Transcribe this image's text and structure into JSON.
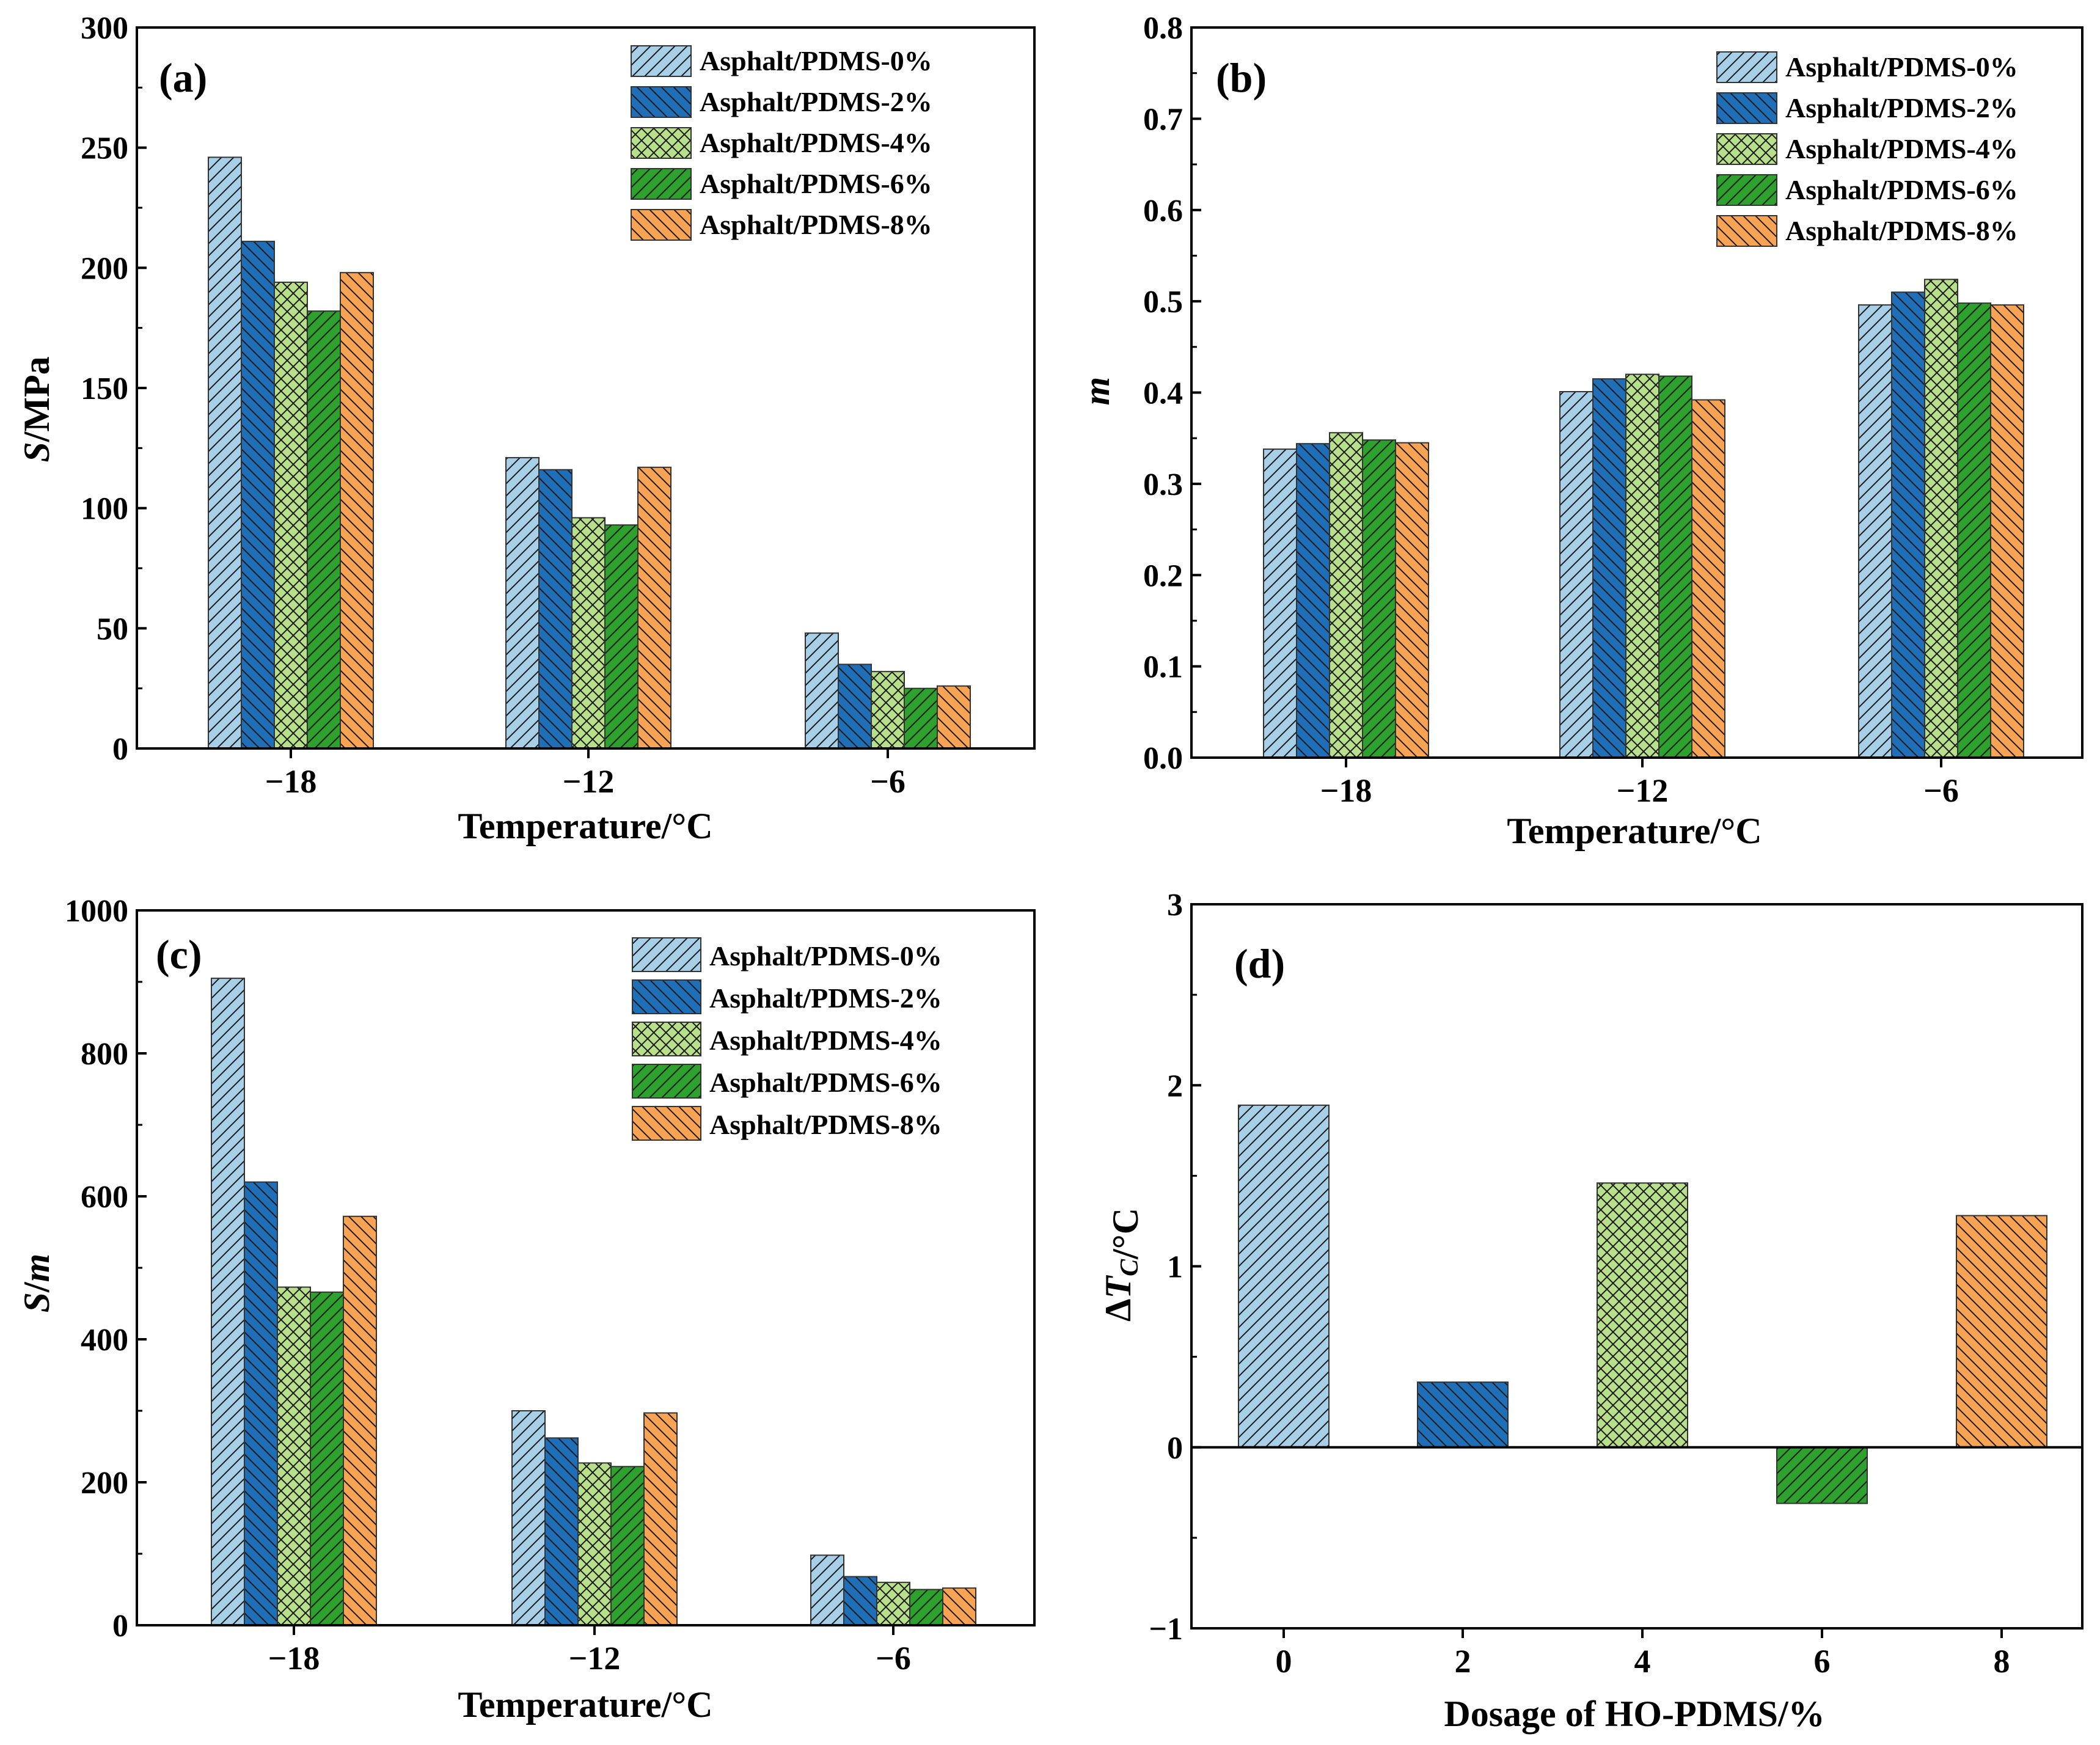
{
  "chart_data": [
    {
      "type": "bar",
      "panel_label": "(a)",
      "title": "",
      "xlabel": "Temperature/°C",
      "ylabel_parts": [
        {
          "text": "S",
          "italic": true
        },
        {
          "text": "/MPa",
          "italic": false
        }
      ],
      "categories": [
        "−18",
        "−12",
        "−6"
      ],
      "yticks": [
        "0",
        "50",
        "100",
        "150",
        "200",
        "250",
        "300"
      ],
      "ylim": [
        0,
        300
      ],
      "legend_position": "top-right",
      "grid": false,
      "series": [
        {
          "name": "Asphalt/PDMS-0%",
          "values": [
            246,
            121,
            48
          ]
        },
        {
          "name": "Asphalt/PDMS-2%",
          "values": [
            211,
            116,
            35
          ]
        },
        {
          "name": "Asphalt/PDMS-4%",
          "values": [
            194,
            96,
            32
          ]
        },
        {
          "name": "Asphalt/PDMS-6%",
          "values": [
            182,
            93,
            25
          ]
        },
        {
          "name": "Asphalt/PDMS-8%",
          "values": [
            198,
            117,
            26
          ]
        }
      ]
    },
    {
      "type": "bar",
      "panel_label": "(b)",
      "title": "",
      "xlabel": "Temperature/°C",
      "ylabel_parts": [
        {
          "text": "m",
          "italic": true
        }
      ],
      "categories": [
        "−18",
        "−12",
        "−6"
      ],
      "yticks": [
        "0.0",
        "0.1",
        "0.2",
        "0.3",
        "0.4",
        "0.5",
        "0.6",
        "0.7",
        "0.8"
      ],
      "ylim": [
        0,
        0.8
      ],
      "legend_position": "top-right",
      "grid": false,
      "series": [
        {
          "name": "Asphalt/PDMS-0%",
          "values": [
            0.338,
            0.401,
            0.496
          ]
        },
        {
          "name": "Asphalt/PDMS-2%",
          "values": [
            0.344,
            0.415,
            0.51
          ]
        },
        {
          "name": "Asphalt/PDMS-4%",
          "values": [
            0.356,
            0.42,
            0.524
          ]
        },
        {
          "name": "Asphalt/PDMS-6%",
          "values": [
            0.348,
            0.418,
            0.498
          ]
        },
        {
          "name": "Asphalt/PDMS-8%",
          "values": [
            0.345,
            0.392,
            0.496
          ]
        }
      ]
    },
    {
      "type": "bar",
      "panel_label": "(c)",
      "title": "",
      "xlabel": "Temperature/°C",
      "ylabel_parts": [
        {
          "text": "S",
          "italic": true
        },
        {
          "text": "/",
          "italic": false
        },
        {
          "text": "m",
          "italic": true
        }
      ],
      "categories": [
        "−18",
        "−12",
        "−6"
      ],
      "yticks": [
        "0",
        "200",
        "400",
        "600",
        "800",
        "1000"
      ],
      "ylim": [
        0,
        1000
      ],
      "legend_position": "top-right",
      "grid": false,
      "series": [
        {
          "name": "Asphalt/PDMS-0%",
          "values": [
            905,
            300,
            98
          ]
        },
        {
          "name": "Asphalt/PDMS-2%",
          "values": [
            620,
            262,
            68
          ]
        },
        {
          "name": "Asphalt/PDMS-4%",
          "values": [
            473,
            227,
            60
          ]
        },
        {
          "name": "Asphalt/PDMS-6%",
          "values": [
            466,
            222,
            50
          ]
        },
        {
          "name": "Asphalt/PDMS-8%",
          "values": [
            572,
            297,
            52
          ]
        }
      ]
    },
    {
      "type": "bar",
      "panel_label": "(d)",
      "title": "",
      "xlabel": "Dosage of HO-PDMS/%",
      "ylabel_parts": [
        {
          "text": "Δ",
          "italic": false
        },
        {
          "text": "T",
          "italic": true
        },
        {
          "text": "C",
          "italic": true,
          "sub": true
        },
        {
          "text": "/°C",
          "italic": false
        }
      ],
      "categories": [
        "0",
        "2",
        "4",
        "6",
        "8"
      ],
      "yticks": [
        "−1",
        "0",
        "1",
        "2",
        "3"
      ],
      "ylim": [
        -1,
        3
      ],
      "zero_line": true,
      "legend_position": "none",
      "grid": false,
      "values": [
        1.89,
        0.36,
        1.46,
        -0.31,
        1.28
      ]
    }
  ],
  "style": {
    "colors": [
      "#a7cfe8",
      "#1f6fb8",
      "#b8e08c",
      "#2ea02e",
      "#f9a454"
    ],
    "patterns": [
      "diag-right",
      "diag-left",
      "crosshatch",
      "diag-right",
      "diag-left"
    ]
  }
}
